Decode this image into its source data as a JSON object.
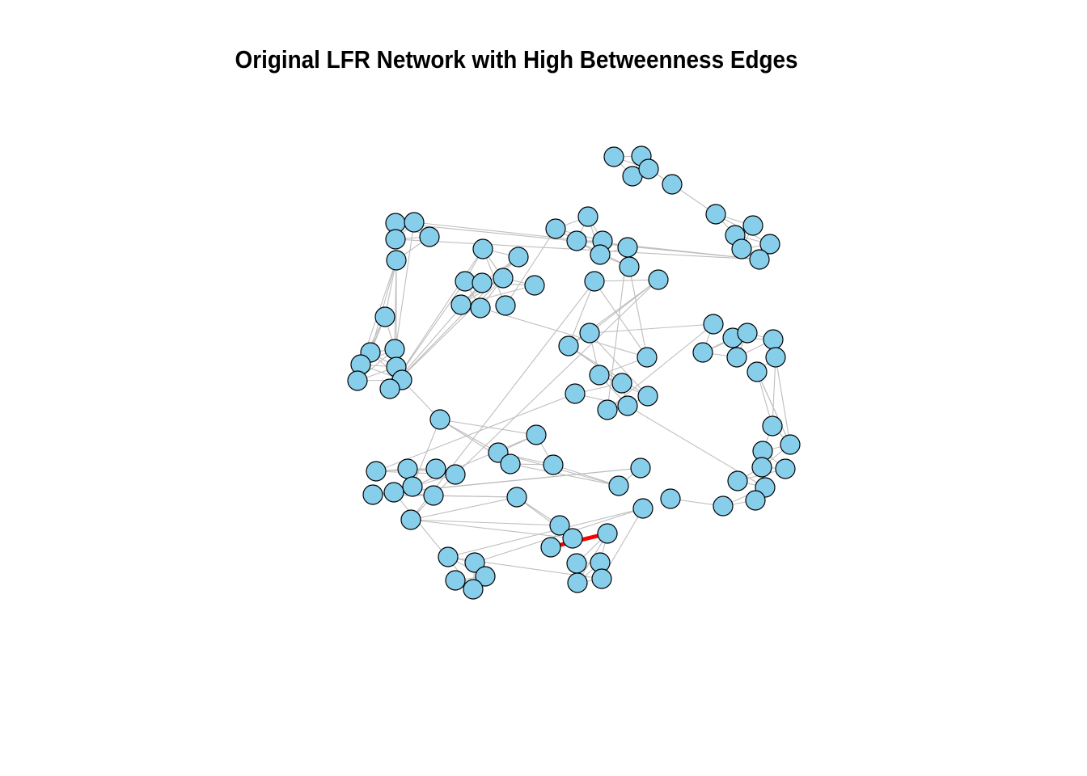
{
  "title": "Original LFR Network with High Betweenness Edges",
  "colors": {
    "node_fill": "#87CEEB",
    "node_stroke": "#000000",
    "edge": "#BEBEBE",
    "highlight_edge": "#FF0000",
    "background": "#FFFFFF"
  },
  "network": {
    "nodes": [
      {
        "id": "n1"
      },
      {
        "id": "n2"
      },
      {
        "id": "n3"
      },
      {
        "id": "n4"
      },
      {
        "id": "n5"
      },
      {
        "id": "n6"
      },
      {
        "id": "n7"
      },
      {
        "id": "n8"
      },
      {
        "id": "n9"
      },
      {
        "id": "n10"
      },
      {
        "id": "n11"
      },
      {
        "id": "n12"
      },
      {
        "id": "n13"
      },
      {
        "id": "n14"
      },
      {
        "id": "n15"
      },
      {
        "id": "n16"
      },
      {
        "id": "n17"
      },
      {
        "id": "n18"
      },
      {
        "id": "n19"
      },
      {
        "id": "n20"
      },
      {
        "id": "n21"
      },
      {
        "id": "n22"
      },
      {
        "id": "n23"
      },
      {
        "id": "n24"
      },
      {
        "id": "n25"
      },
      {
        "id": "n26"
      },
      {
        "id": "n27"
      },
      {
        "id": "n28"
      },
      {
        "id": "n29"
      },
      {
        "id": "n30"
      },
      {
        "id": "n31"
      },
      {
        "id": "n32"
      },
      {
        "id": "n33"
      },
      {
        "id": "n34"
      },
      {
        "id": "n35"
      },
      {
        "id": "n36"
      },
      {
        "id": "n37"
      },
      {
        "id": "n38"
      },
      {
        "id": "n39"
      },
      {
        "id": "n40"
      },
      {
        "id": "n41"
      },
      {
        "id": "n42"
      },
      {
        "id": "n43"
      },
      {
        "id": "n44"
      },
      {
        "id": "n45"
      },
      {
        "id": "n46"
      },
      {
        "id": "n47"
      },
      {
        "id": "n48"
      },
      {
        "id": "n49"
      },
      {
        "id": "n50"
      },
      {
        "id": "n51"
      },
      {
        "id": "n52"
      },
      {
        "id": "n53"
      },
      {
        "id": "n54"
      },
      {
        "id": "n55"
      },
      {
        "id": "n56"
      },
      {
        "id": "n57"
      },
      {
        "id": "n58"
      },
      {
        "id": "n59"
      },
      {
        "id": "n60"
      },
      {
        "id": "n61"
      },
      {
        "id": "n62"
      },
      {
        "id": "n63"
      },
      {
        "id": "n64"
      },
      {
        "id": "n65"
      },
      {
        "id": "n66"
      },
      {
        "id": "n67"
      },
      {
        "id": "n68"
      },
      {
        "id": "n69"
      },
      {
        "id": "n70"
      },
      {
        "id": "n71"
      },
      {
        "id": "n72"
      },
      {
        "id": "n73"
      },
      {
        "id": "n74"
      },
      {
        "id": "n75"
      },
      {
        "id": "n76"
      },
      {
        "id": "n77"
      },
      {
        "id": "n78"
      },
      {
        "id": "n79"
      },
      {
        "id": "n80"
      },
      {
        "id": "n81"
      },
      {
        "id": "n82"
      },
      {
        "id": "n83"
      },
      {
        "id": "n84"
      },
      {
        "id": "n85"
      },
      {
        "id": "n86"
      },
      {
        "id": "n87"
      },
      {
        "id": "n88"
      },
      {
        "id": "n89"
      },
      {
        "id": "n90"
      },
      {
        "id": "n91"
      },
      {
        "id": "n92"
      },
      {
        "id": "n93"
      },
      {
        "id": "n94"
      },
      {
        "id": "n95"
      },
      {
        "id": "n96"
      },
      {
        "id": "n97"
      },
      {
        "id": "n98"
      },
      {
        "id": "n99"
      },
      {
        "id": "n100"
      }
    ],
    "edges": [
      [
        "n1",
        "n2"
      ],
      [
        "n1",
        "n3"
      ],
      [
        "n2",
        "n3"
      ],
      [
        "n2",
        "n4"
      ],
      [
        "n3",
        "n4"
      ],
      [
        "n4",
        "n5"
      ],
      [
        "n1",
        "n4"
      ],
      [
        "n5",
        "n6"
      ],
      [
        "n6",
        "n7"
      ],
      [
        "n6",
        "n8"
      ],
      [
        "n6",
        "n9"
      ],
      [
        "n7",
        "n8"
      ],
      [
        "n8",
        "n9"
      ],
      [
        "n9",
        "n10"
      ],
      [
        "n7",
        "n10"
      ],
      [
        "n8",
        "n10"
      ],
      [
        "n11",
        "n12"
      ],
      [
        "n11",
        "n13"
      ],
      [
        "n11",
        "n14"
      ],
      [
        "n12",
        "n13"
      ],
      [
        "n13",
        "n14"
      ],
      [
        "n12",
        "n15"
      ],
      [
        "n14",
        "n15"
      ],
      [
        "n12",
        "n14"
      ],
      [
        "n15",
        "n16"
      ],
      [
        "n16",
        "n17"
      ],
      [
        "n16",
        "n18"
      ],
      [
        "n16",
        "n19"
      ],
      [
        "n16",
        "n20"
      ],
      [
        "n16",
        "n21"
      ],
      [
        "n17",
        "n18"
      ],
      [
        "n18",
        "n19"
      ],
      [
        "n19",
        "n20"
      ],
      [
        "n20",
        "n21"
      ],
      [
        "n21",
        "n22"
      ],
      [
        "n18",
        "n22"
      ],
      [
        "n17",
        "n20"
      ],
      [
        "n18",
        "n21"
      ],
      [
        "n19",
        "n22"
      ],
      [
        "n20",
        "n22"
      ],
      [
        "n17",
        "n19"
      ],
      [
        "n17",
        "n22"
      ],
      [
        "n18",
        "n23"
      ],
      [
        "n19",
        "n23"
      ],
      [
        "n22",
        "n23"
      ],
      [
        "n20",
        "n23"
      ],
      [
        "n23",
        "n70"
      ],
      [
        "n13",
        "n24"
      ],
      [
        "n24",
        "n25"
      ],
      [
        "n24",
        "n26"
      ],
      [
        "n24",
        "n27"
      ],
      [
        "n24",
        "n28"
      ],
      [
        "n25",
        "n27"
      ],
      [
        "n25",
        "n26"
      ],
      [
        "n27",
        "n29"
      ],
      [
        "n28",
        "n30"
      ],
      [
        "n28",
        "n31"
      ],
      [
        "n29",
        "n30"
      ],
      [
        "n29",
        "n31"
      ],
      [
        "n26",
        "n28"
      ],
      [
        "n25",
        "n29"
      ],
      [
        "n26",
        "n31"
      ],
      [
        "n29",
        "n32"
      ],
      [
        "n27",
        "n32"
      ],
      [
        "n30",
        "n31"
      ],
      [
        "n24",
        "n29"
      ],
      [
        "n25",
        "n33"
      ],
      [
        "n33",
        "n34"
      ],
      [
        "n34",
        "n35"
      ],
      [
        "n34",
        "n36"
      ],
      [
        "n34",
        "n37"
      ],
      [
        "n35",
        "n38"
      ],
      [
        "n36",
        "n38"
      ],
      [
        "n37",
        "n38"
      ],
      [
        "n36",
        "n37"
      ],
      [
        "n35",
        "n36"
      ],
      [
        "n37",
        "n39"
      ],
      [
        "n38",
        "n39"
      ],
      [
        "n36",
        "n40"
      ],
      [
        "n39",
        "n40"
      ],
      [
        "n38",
        "n40"
      ],
      [
        "n35",
        "n37"
      ],
      [
        "n32",
        "n45"
      ],
      [
        "n40",
        "n45"
      ],
      [
        "n41",
        "n42"
      ],
      [
        "n42",
        "n43"
      ],
      [
        "n42",
        "n44"
      ],
      [
        "n43",
        "n44"
      ],
      [
        "n41",
        "n43"
      ],
      [
        "n41",
        "n45"
      ],
      [
        "n45",
        "n46"
      ],
      [
        "n44",
        "n46"
      ],
      [
        "n43",
        "n47"
      ],
      [
        "n47",
        "n48"
      ],
      [
        "n48",
        "n49"
      ],
      [
        "n47",
        "n49"
      ],
      [
        "n46",
        "n49"
      ],
      [
        "n46",
        "n50"
      ],
      [
        "n44",
        "n50"
      ],
      [
        "n43",
        "n50"
      ],
      [
        "n46",
        "n47"
      ],
      [
        "n49",
        "n50"
      ],
      [
        "n39",
        "n51"
      ],
      [
        "n51",
        "n52"
      ],
      [
        "n52",
        "n53"
      ],
      [
        "n53",
        "n54"
      ],
      [
        "n53",
        "n55"
      ],
      [
        "n54",
        "n55"
      ],
      [
        "n54",
        "n56"
      ],
      [
        "n55",
        "n56"
      ],
      [
        "n56",
        "n57"
      ],
      [
        "n55",
        "n57"
      ],
      [
        "n53",
        "n56"
      ],
      [
        "n54",
        "n57"
      ],
      [
        "n52",
        "n44"
      ],
      [
        "n57",
        "n58"
      ],
      [
        "n58",
        "n59"
      ],
      [
        "n58",
        "n60"
      ],
      [
        "n59",
        "n60"
      ],
      [
        "n59",
        "n61"
      ],
      [
        "n60",
        "n61"
      ],
      [
        "n61",
        "n62"
      ],
      [
        "n60",
        "n62"
      ],
      [
        "n62",
        "n63"
      ],
      [
        "n61",
        "n63"
      ],
      [
        "n63",
        "n64"
      ],
      [
        "n62",
        "n64"
      ],
      [
        "n64",
        "n65"
      ],
      [
        "n59",
        "n61"
      ],
      [
        "n58",
        "n61"
      ],
      [
        "n63",
        "n65"
      ],
      [
        "n65",
        "n66"
      ],
      [
        "n66",
        "n67"
      ],
      [
        "n66",
        "n68"
      ],
      [
        "n67",
        "n68"
      ],
      [
        "n68",
        "n69"
      ],
      [
        "n49",
        "n66"
      ],
      [
        "n70",
        "n71"
      ],
      [
        "n71",
        "n72"
      ],
      [
        "n70",
        "n72"
      ],
      [
        "n72",
        "n73"
      ],
      [
        "n73",
        "n74"
      ],
      [
        "n71",
        "n74"
      ],
      [
        "n72",
        "n74"
      ],
      [
        "n70",
        "n73"
      ],
      [
        "n73",
        "n75"
      ],
      [
        "n74",
        "n75"
      ],
      [
        "n72",
        "n75"
      ],
      [
        "n75",
        "n76"
      ],
      [
        "n48",
        "n77"
      ],
      [
        "n77",
        "n78"
      ],
      [
        "n77",
        "n79"
      ],
      [
        "n78",
        "n79"
      ],
      [
        "n79",
        "n80"
      ],
      [
        "n80",
        "n81"
      ],
      [
        "n81",
        "n71"
      ],
      [
        "n78",
        "n80"
      ],
      [
        "n77",
        "n80"
      ],
      [
        "n70",
        "n81"
      ],
      [
        "n76",
        "n82"
      ],
      [
        "n82",
        "n83"
      ],
      [
        "n82",
        "n84"
      ],
      [
        "n83",
        "n84"
      ],
      [
        "n84",
        "n85"
      ],
      [
        "n85",
        "n86"
      ],
      [
        "n83",
        "n86"
      ],
      [
        "n84",
        "n86"
      ],
      [
        "n86",
        "n87"
      ],
      [
        "n87",
        "n88"
      ],
      [
        "n85",
        "n88"
      ],
      [
        "n87",
        "n89"
      ],
      [
        "n88",
        "n89"
      ],
      [
        "n86",
        "n88"
      ],
      [
        "n76",
        "n83"
      ],
      [
        "n81",
        "n83"
      ],
      [
        "n90",
        "n91"
      ],
      [
        "n91",
        "n92"
      ],
      [
        "n90",
        "n92"
      ],
      [
        "n92",
        "n93"
      ],
      [
        "n93",
        "n94"
      ],
      [
        "n90",
        "n93"
      ],
      [
        "n94",
        "n95"
      ],
      [
        "n95",
        "n96"
      ],
      [
        "n96",
        "n97"
      ],
      [
        "n97",
        "n98"
      ],
      [
        "n95",
        "n97"
      ],
      [
        "n96",
        "n98"
      ],
      [
        "n94",
        "n96"
      ],
      [
        "n98",
        "n99"
      ],
      [
        "n99",
        "n100"
      ],
      [
        "n97",
        "n100"
      ],
      [
        "n98",
        "n100"
      ],
      [
        "n100",
        "n82"
      ],
      [
        "n41",
        "n85"
      ],
      [
        "n42",
        "n84"
      ],
      [
        "n85",
        "n87"
      ]
    ],
    "highlighted_edges": [
      [
        "n89",
        "n90"
      ]
    ]
  }
}
